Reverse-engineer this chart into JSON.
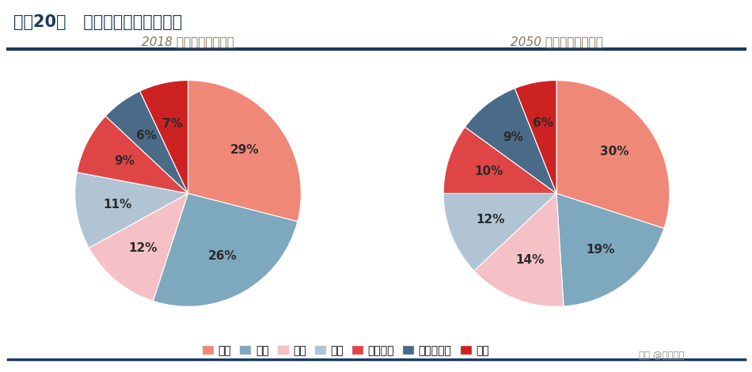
{
  "title": "图表20：   各部门用铝需求及测算",
  "subtitle_2018": "2018 年各部门用铝需求",
  "subtitle_2050": "2050 年各部门用铝需求",
  "categories": [
    "交通",
    "建筑",
    "包装",
    "电子",
    "机器设备",
    "耐用消费品",
    "其他"
  ],
  "colors": [
    "#F08878",
    "#7EA8BE",
    "#F5C0C6",
    "#B0C4D4",
    "#E04545",
    "#4A6B88",
    "#CC2222"
  ],
  "values_2018": [
    29,
    26,
    12,
    11,
    9,
    6,
    7
  ],
  "values_2050": [
    30,
    19,
    14,
    12,
    10,
    9,
    6
  ],
  "labels_2018": [
    "29%",
    "26%",
    "12%",
    "11%",
    "9%",
    "6%",
    "7%"
  ],
  "labels_2050": [
    "30%",
    "19%",
    "14%",
    "12%",
    "10%",
    "9%",
    "6%"
  ],
  "header_bg": "#FFFFFF",
  "header_text_color": "#1A3A5C",
  "title_line_color": "#1A3A5C",
  "subtitle_color": "#8B7355",
  "bg_color": "#FFFFFF",
  "label_fontsize": 11,
  "legend_fontsize": 10,
  "watermark": "头条 @未来智库"
}
